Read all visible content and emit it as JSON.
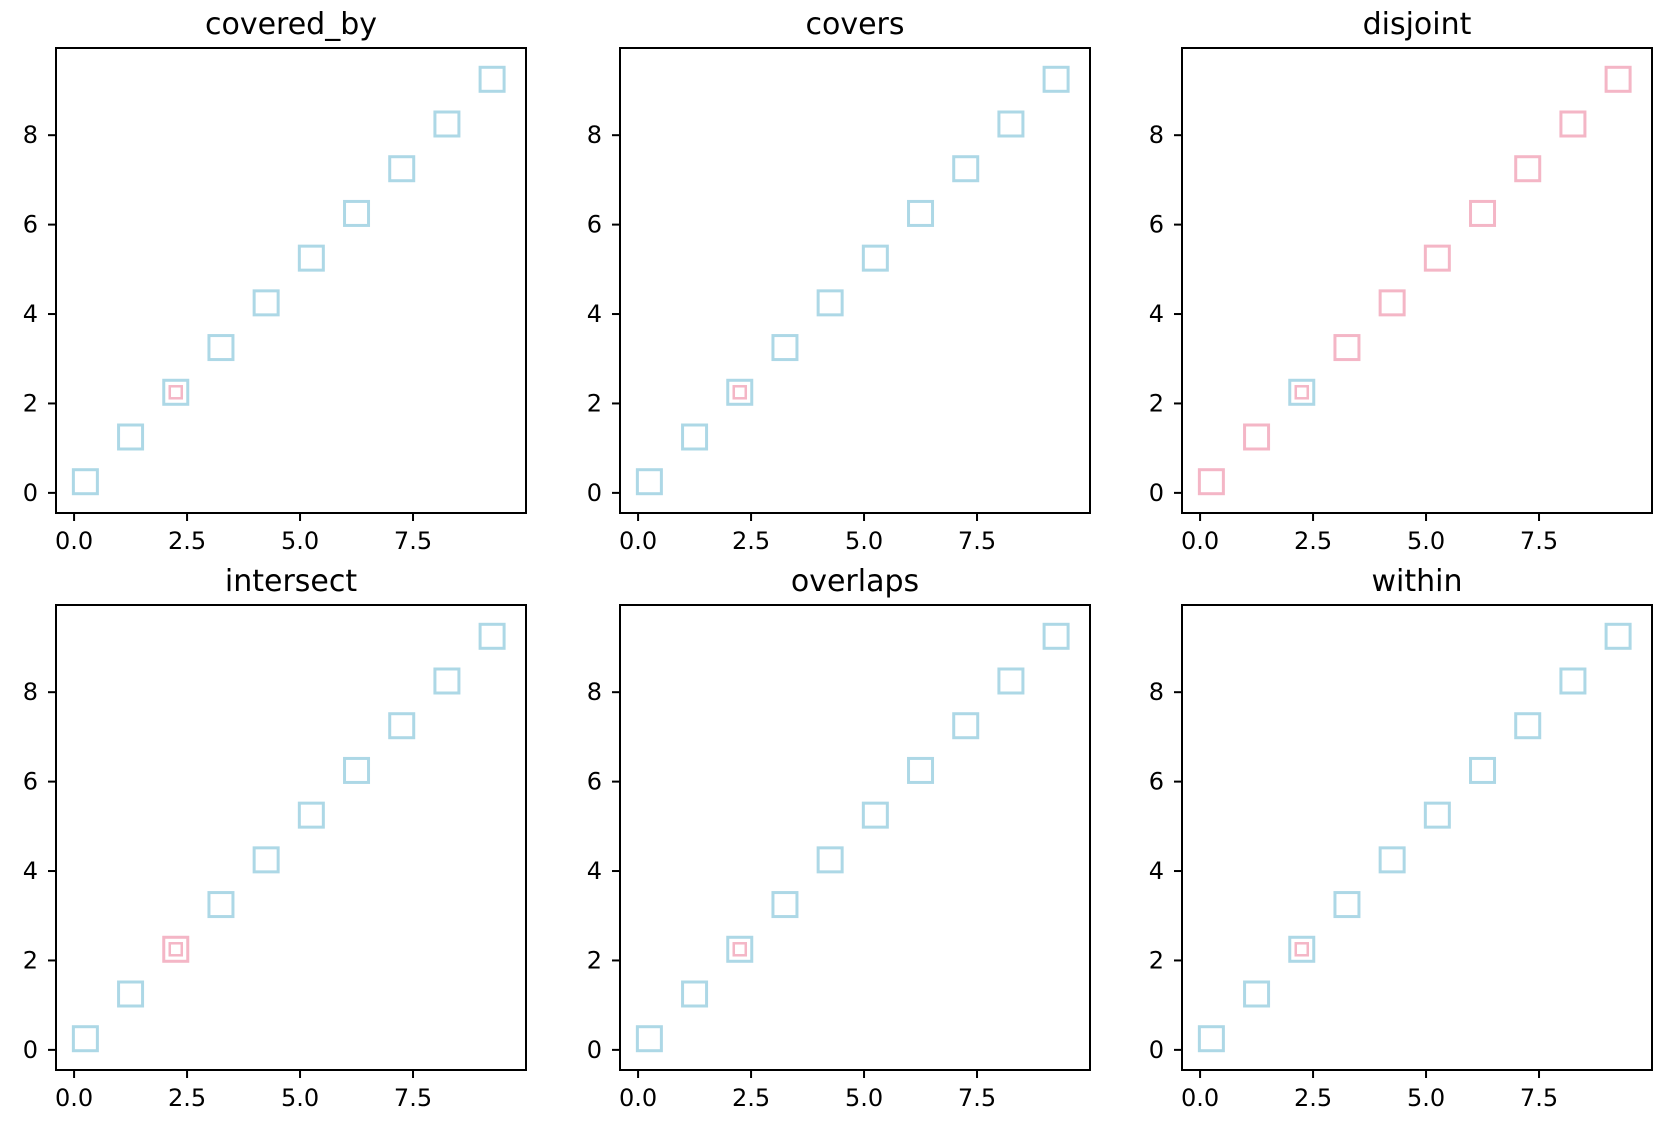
{
  "colors": {
    "base": "#add8e6",
    "highlight": "#f4b6c6"
  },
  "chart_data": [
    {
      "type": "scatter",
      "title": "covered_by",
      "xlim": [
        -0.4,
        10.0
      ],
      "ylim": [
        -0.45,
        9.95
      ],
      "xticks": [
        0.0,
        2.5,
        5.0,
        7.5
      ],
      "xtick_labels": [
        "0.0",
        "2.5",
        "5.0",
        "7.5"
      ],
      "yticks": [
        0,
        2,
        4,
        6,
        8
      ],
      "ytick_labels": [
        "0",
        "2",
        "4",
        "6",
        "8"
      ],
      "grid": false,
      "base_squares": {
        "x": [
          0.25,
          1.25,
          2.25,
          3.25,
          4.25,
          5.25,
          6.25,
          7.25,
          8.25,
          9.25
        ],
        "y": [
          0.25,
          1.25,
          2.25,
          3.25,
          4.25,
          5.25,
          6.25,
          7.25,
          8.25,
          9.25
        ],
        "color": "#add8e6"
      },
      "query_square": {
        "x": 2.25,
        "y": 2.25,
        "color": "#f4b6c6"
      },
      "highlighted_index": null
    },
    {
      "type": "scatter",
      "title": "covers",
      "xlim": [
        -0.4,
        10.0
      ],
      "ylim": [
        -0.45,
        9.95
      ],
      "xticks": [
        0.0,
        2.5,
        5.0,
        7.5
      ],
      "xtick_labels": [
        "0.0",
        "2.5",
        "5.0",
        "7.5"
      ],
      "yticks": [
        0,
        2,
        4,
        6,
        8
      ],
      "ytick_labels": [
        "0",
        "2",
        "4",
        "6",
        "8"
      ],
      "grid": false,
      "base_squares": {
        "x": [
          0.25,
          1.25,
          2.25,
          3.25,
          4.25,
          5.25,
          6.25,
          7.25,
          8.25,
          9.25
        ],
        "y": [
          0.25,
          1.25,
          2.25,
          3.25,
          4.25,
          5.25,
          6.25,
          7.25,
          8.25,
          9.25
        ],
        "color": "#add8e6"
      },
      "query_square": {
        "x": 2.25,
        "y": 2.25,
        "color": "#f4b6c6"
      },
      "highlighted_index": 2
    },
    {
      "type": "scatter",
      "title": "disjoint",
      "xlim": [
        -0.4,
        10.0
      ],
      "ylim": [
        -0.45,
        9.95
      ],
      "xticks": [
        0.0,
        2.5,
        5.0,
        7.5
      ],
      "xtick_labels": [
        "0.0",
        "2.5",
        "5.0",
        "7.5"
      ],
      "yticks": [
        0,
        2,
        4,
        6,
        8
      ],
      "ytick_labels": [
        "0",
        "2",
        "4",
        "6",
        "8"
      ],
      "grid": false,
      "base_squares": {
        "x": [
          0.25,
          1.25,
          2.25,
          3.25,
          4.25,
          5.25,
          6.25,
          7.25,
          8.25,
          9.25
        ],
        "y": [
          0.25,
          1.25,
          2.25,
          3.25,
          4.25,
          5.25,
          6.25,
          7.25,
          8.25,
          9.25
        ],
        "color": "#add8e6"
      },
      "query_square": {
        "x": 2.25,
        "y": 2.25,
        "color": "#f4b6c6"
      },
      "highlighted_indices": [
        0,
        1,
        3,
        4,
        5,
        6,
        7,
        8,
        9
      ]
    },
    {
      "type": "scatter",
      "title": "intersect",
      "xlim": [
        -0.4,
        10.0
      ],
      "ylim": [
        -0.45,
        9.95
      ],
      "xticks": [
        0.0,
        2.5,
        5.0,
        7.5
      ],
      "xtick_labels": [
        "0.0",
        "2.5",
        "5.0",
        "7.5"
      ],
      "yticks": [
        0,
        2,
        4,
        6,
        8
      ],
      "ytick_labels": [
        "0",
        "2",
        "4",
        "6",
        "8"
      ],
      "grid": false,
      "base_squares": {
        "x": [
          0.25,
          1.25,
          2.25,
          3.25,
          4.25,
          5.25,
          6.25,
          7.25,
          8.25,
          9.25
        ],
        "y": [
          0.25,
          1.25,
          2.25,
          3.25,
          4.25,
          5.25,
          6.25,
          7.25,
          8.25,
          9.25
        ],
        "color": "#add8e6"
      },
      "query_square": {
        "x": 2.25,
        "y": 2.25,
        "color": "#f4b6c6"
      },
      "highlighted_indices": [
        2
      ]
    },
    {
      "type": "scatter",
      "title": "overlaps",
      "xlim": [
        -0.4,
        10.0
      ],
      "ylim": [
        -0.45,
        9.95
      ],
      "xticks": [
        0.0,
        2.5,
        5.0,
        7.5
      ],
      "xtick_labels": [
        "0.0",
        "2.5",
        "5.0",
        "7.5"
      ],
      "yticks": [
        0,
        2,
        4,
        6,
        8
      ],
      "ytick_labels": [
        "0",
        "2",
        "4",
        "6",
        "8"
      ],
      "grid": false,
      "base_squares": {
        "x": [
          0.25,
          1.25,
          2.25,
          3.25,
          4.25,
          5.25,
          6.25,
          7.25,
          8.25,
          9.25
        ],
        "y": [
          0.25,
          1.25,
          2.25,
          3.25,
          4.25,
          5.25,
          6.25,
          7.25,
          8.25,
          9.25
        ],
        "color": "#add8e6"
      },
      "query_square": {
        "x": 2.25,
        "y": 2.25,
        "color": "#f4b6c6"
      },
      "highlighted_indices": []
    },
    {
      "type": "scatter",
      "title": "within",
      "xlim": [
        -0.4,
        10.0
      ],
      "ylim": [
        -0.45,
        9.95
      ],
      "xticks": [
        0.0,
        2.5,
        5.0,
        7.5
      ],
      "xtick_labels": [
        "0.0",
        "2.5",
        "5.0",
        "7.5"
      ],
      "yticks": [
        0,
        2,
        4,
        6,
        8
      ],
      "ytick_labels": [
        "0",
        "2",
        "4",
        "6",
        "8"
      ],
      "grid": false,
      "base_squares": {
        "x": [
          0.25,
          1.25,
          2.25,
          3.25,
          4.25,
          5.25,
          6.25,
          7.25,
          8.25,
          9.25
        ],
        "y": [
          0.25,
          1.25,
          2.25,
          3.25,
          4.25,
          5.25,
          6.25,
          7.25,
          8.25,
          9.25
        ],
        "color": "#add8e6"
      },
      "query_square": {
        "x": 2.25,
        "y": 2.25,
        "color": "#f4b6c6"
      },
      "highlighted_indices": []
    }
  ]
}
